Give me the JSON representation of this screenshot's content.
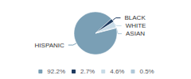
{
  "chart_data": {
    "type": "pie",
    "categories": [
      "HISPANIC",
      "BLACK",
      "WHITE",
      "ASIAN"
    ],
    "values": [
      92.2,
      2.7,
      4.6,
      0.5
    ],
    "colors": [
      "#7a9fb5",
      "#1e3a5f",
      "#c8dbe6",
      "#b0c8d8"
    ],
    "value_labels": [
      "92.2%",
      "2.7%",
      "4.6%",
      "0.5%"
    ],
    "legend": "bottom"
  }
}
